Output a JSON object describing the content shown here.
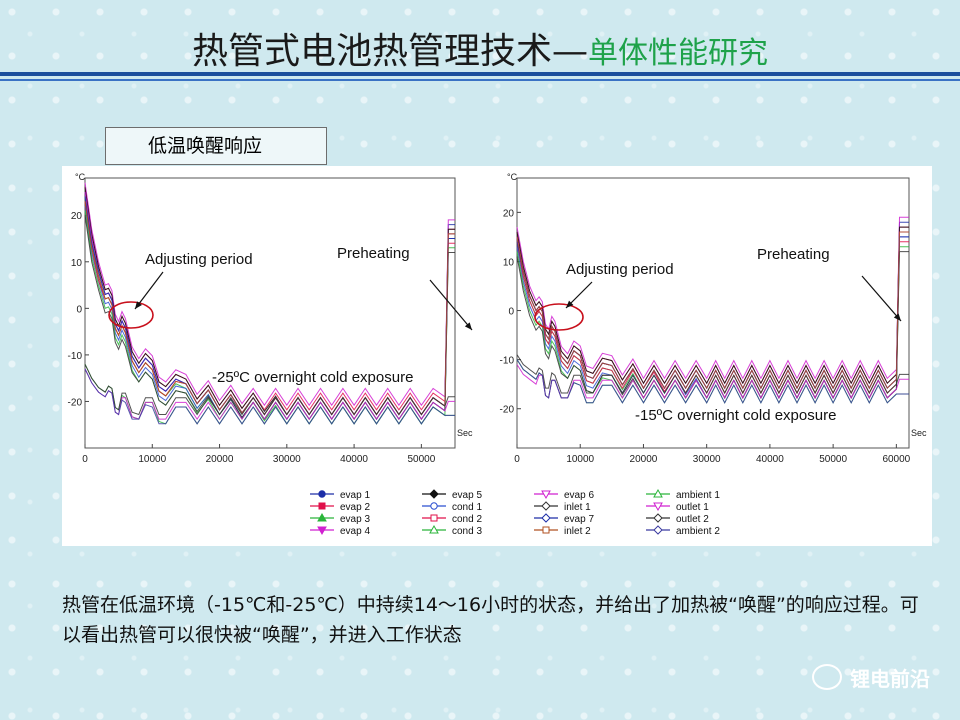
{
  "title": {
    "main": "热管式电池热管理技术",
    "dash": "—",
    "sub": "单体性能研究"
  },
  "section_label": "低温唤醒响应",
  "caption": "热管在低温环境（-15℃和-25℃）中持续14～16小时的状态，并给出了加热被“唤醒”的响应过程。可以看出热管可以很快被“唤醒”，并进入工作状态",
  "watermark": "锂电前沿",
  "colors": {
    "evap": "#1d2ea8",
    "hot": "#e0104a",
    "green": "#2ab53a",
    "magenta": "#d020d0",
    "black": "#111111",
    "purple": "#7a3aa0"
  },
  "chart_data": [
    {
      "type": "line",
      "panel": "left",
      "y_unit": "°C",
      "x_unit": "Sec",
      "xlim": [
        0,
        55000
      ],
      "ylim": [
        -30,
        28
      ],
      "xticks": [
        "0",
        "10000",
        "20000",
        "30000",
        "40000",
        "50000"
      ],
      "yticks": [
        "20",
        "10",
        "0",
        "-10",
        "-20"
      ],
      "annotations": [
        "Adjusting  period",
        "Preheating",
        "-25ºC overnight cold exposure"
      ],
      "x": [
        0,
        1000,
        2000,
        3000,
        4000,
        5000,
        6000,
        8000,
        10000,
        12000,
        15000,
        20000,
        25000,
        30000,
        35000,
        40000,
        45000,
        50000,
        53500,
        54000,
        55000
      ],
      "series": [
        {
          "name": "evap 1",
          "values": [
            25,
            15,
            8,
            3,
            0,
            -3,
            -6,
            -11,
            -14,
            -16,
            -18,
            -20,
            -21,
            -21,
            -21,
            -21,
            -21,
            -21,
            -21,
            18,
            18
          ]
        },
        {
          "name": "evap 2",
          "values": [
            26,
            16,
            9,
            4,
            1,
            -2,
            -5,
            -10,
            -13,
            -15,
            -17,
            -19,
            -20,
            -20,
            -20,
            -20,
            -20,
            -20,
            -20,
            17,
            17
          ]
        },
        {
          "name": "evap 3",
          "values": [
            24,
            14,
            7,
            2,
            -1,
            -4,
            -7,
            -12,
            -15,
            -17,
            -19,
            -21,
            -22,
            -22,
            -22,
            -22,
            -22,
            -22,
            -22,
            16,
            16
          ]
        },
        {
          "name": "evap 4",
          "values": [
            27,
            17,
            10,
            5,
            2,
            -1,
            -4,
            -9,
            -12,
            -14,
            -16,
            -18,
            -19,
            -19,
            -19,
            -19,
            -19,
            -19,
            -19,
            19,
            19
          ]
        },
        {
          "name": "evap 5",
          "values": [
            26,
            16,
            9,
            4,
            1,
            -2,
            -5,
            -10,
            -13,
            -15,
            -17,
            -19,
            -20,
            -21,
            -21,
            -21,
            -21,
            -21,
            -21,
            17,
            17
          ]
        },
        {
          "name": "cond 1",
          "values": [
            22,
            12,
            6,
            1,
            -2,
            -5,
            -8,
            -13,
            -16,
            -18,
            -19,
            -21,
            -22,
            -22,
            -22,
            -22,
            -22,
            -22,
            -22,
            15,
            15
          ]
        },
        {
          "name": "cond 2",
          "values": [
            23,
            13,
            6,
            2,
            -1,
            -4,
            -7,
            -12,
            -15,
            -17,
            -18,
            -20,
            -21,
            -21,
            -21,
            -21,
            -21,
            -21,
            -21,
            14,
            14
          ]
        },
        {
          "name": "cond 3",
          "values": [
            21,
            11,
            5,
            0,
            -3,
            -6,
            -9,
            -14,
            -17,
            -19,
            -20,
            -22,
            -22,
            -23,
            -23,
            -23,
            -23,
            -23,
            -23,
            13,
            13
          ]
        },
        {
          "name": "evap 6",
          "values": [
            25,
            15,
            8,
            3,
            0,
            -3,
            -6,
            -11,
            -14,
            -16,
            -18,
            -20,
            -21,
            -21,
            -21,
            -21,
            -21,
            -21,
            -21,
            16,
            16
          ]
        },
        {
          "name": "inlet 1",
          "values": [
            20,
            10,
            4,
            -1,
            -4,
            -7,
            -10,
            -14,
            -17,
            -19,
            -20,
            -21,
            -22,
            -22,
            -22,
            -22,
            -22,
            -22,
            -22,
            12,
            12
          ]
        },
        {
          "name": "evap 7",
          "values": [
            24,
            14,
            8,
            3,
            0,
            -3,
            -6,
            -11,
            -14,
            -16,
            -18,
            -20,
            -21,
            -21,
            -21,
            -21,
            -21,
            -21,
            -21,
            15,
            15
          ]
        },
        {
          "name": "inlet 2",
          "values": [
            23,
            13,
            7,
            2,
            -1,
            -4,
            -7,
            -12,
            -15,
            -17,
            -18,
            -20,
            -21,
            -21,
            -21,
            -21,
            -21,
            -21,
            -21,
            16,
            16
          ]
        },
        {
          "name": "ambient 1",
          "values": [
            -12,
            -15,
            -17,
            -18,
            -19,
            -20,
            -21,
            -22,
            -22,
            -23,
            -23,
            -23,
            -23,
            -23,
            -23,
            -23,
            -23,
            -23,
            -23,
            -23,
            -23
          ]
        },
        {
          "name": "outlet 1",
          "values": [
            -13,
            -16,
            -18,
            -19,
            -20,
            -21,
            -21,
            -22,
            -22,
            -22,
            -22,
            -22,
            -22,
            -22,
            -22,
            -22,
            -22,
            -22,
            -22,
            -20,
            -20
          ]
        },
        {
          "name": "outlet 2",
          "values": [
            -12,
            -15,
            -17,
            -18,
            -19,
            -20,
            -20,
            -21,
            -21,
            -21,
            -21,
            -21,
            -21,
            -21,
            -21,
            -21,
            -21,
            -21,
            -21,
            -19,
            -19
          ]
        },
        {
          "name": "ambient 2",
          "values": [
            -13,
            -16,
            -18,
            -19,
            -20,
            -21,
            -22,
            -22,
            -23,
            -23,
            -23,
            -23,
            -23,
            -23,
            -23,
            -23,
            -23,
            -23,
            -23,
            -23,
            -23
          ]
        }
      ]
    },
    {
      "type": "line",
      "panel": "right",
      "y_unit": "°C",
      "x_unit": "Sec",
      "xlim": [
        0,
        62000
      ],
      "ylim": [
        -28,
        27
      ],
      "xticks": [
        "0",
        "10000",
        "20000",
        "30000",
        "40000",
        "50000",
        "60000"
      ],
      "yticks": [
        "20",
        "10",
        "0",
        "-10",
        "-20"
      ],
      "annotations": [
        "Adjusting  period",
        "Preheating",
        "-15ºC overnight cold exposure"
      ],
      "x": [
        0,
        1000,
        2000,
        3000,
        4000,
        5000,
        6000,
        8000,
        10000,
        12000,
        15000,
        20000,
        25000,
        30000,
        40000,
        50000,
        60000,
        60500,
        61000,
        62000
      ],
      "series": [
        {
          "name": "evap 1",
          "values": [
            15,
            8,
            3,
            0,
            -2,
            -4,
            -6,
            -9,
            -11,
            -12,
            -13,
            -14,
            -14,
            -14,
            -14,
            -14,
            -14,
            18,
            18,
            18
          ]
        },
        {
          "name": "evap 2",
          "values": [
            16,
            9,
            4,
            1,
            -1,
            -3,
            -5,
            -8,
            -10,
            -11,
            -12,
            -13,
            -13,
            -13,
            -13,
            -13,
            -13,
            17,
            17,
            17
          ]
        },
        {
          "name": "evap 3",
          "values": [
            14,
            7,
            2,
            -1,
            -3,
            -5,
            -7,
            -10,
            -12,
            -13,
            -14,
            -15,
            -15,
            -15,
            -15,
            -15,
            -15,
            16,
            16,
            16
          ]
        },
        {
          "name": "evap 4",
          "values": [
            17,
            10,
            5,
            2,
            0,
            -2,
            -4,
            -7,
            -9,
            -10,
            -11,
            -12,
            -12,
            -12,
            -12,
            -12,
            -12,
            19,
            19,
            19
          ]
        },
        {
          "name": "evap 5",
          "values": [
            16,
            9,
            4,
            1,
            -1,
            -3,
            -5,
            -8,
            -10,
            -11,
            -12,
            -13,
            -13,
            -13,
            -13,
            -13,
            -13,
            17,
            17,
            17
          ]
        },
        {
          "name": "cond 1",
          "values": [
            13,
            6,
            1,
            -2,
            -4,
            -6,
            -8,
            -11,
            -13,
            -14,
            -15,
            -15,
            -15,
            -16,
            -16,
            -16,
            -16,
            15,
            15,
            15
          ]
        },
        {
          "name": "cond 2",
          "values": [
            14,
            7,
            2,
            -1,
            -3,
            -5,
            -7,
            -10,
            -12,
            -13,
            -14,
            -14,
            -15,
            -15,
            -15,
            -15,
            -15,
            14,
            14,
            14
          ]
        },
        {
          "name": "cond 3",
          "values": [
            12,
            5,
            0,
            -3,
            -5,
            -7,
            -9,
            -12,
            -14,
            -15,
            -16,
            -16,
            -16,
            -16,
            -16,
            -16,
            -16,
            13,
            13,
            13
          ]
        },
        {
          "name": "evap 6",
          "values": [
            15,
            8,
            3,
            0,
            -2,
            -4,
            -6,
            -9,
            -11,
            -12,
            -13,
            -14,
            -14,
            -14,
            -14,
            -14,
            -14,
            16,
            16,
            16
          ]
        },
        {
          "name": "inlet 1",
          "values": [
            11,
            4,
            -1,
            -4,
            -6,
            -8,
            -10,
            -12,
            -14,
            -15,
            -15,
            -16,
            -16,
            -16,
            -16,
            -16,
            -16,
            12,
            12,
            12
          ]
        },
        {
          "name": "evap 7",
          "values": [
            14,
            8,
            3,
            0,
            -2,
            -4,
            -6,
            -9,
            -11,
            -12,
            -13,
            -14,
            -14,
            -14,
            -14,
            -14,
            -14,
            15,
            15,
            15
          ]
        },
        {
          "name": "inlet 2",
          "values": [
            15,
            8,
            3,
            0,
            -2,
            -4,
            -6,
            -9,
            -11,
            -12,
            -13,
            -14,
            -14,
            -14,
            -14,
            -14,
            -14,
            16,
            16,
            16
          ]
        },
        {
          "name": "ambient 1",
          "values": [
            -10,
            -12,
            -13,
            -14,
            -15,
            -16,
            -16,
            -16,
            -17,
            -17,
            -17,
            -17,
            -17,
            -17,
            -17,
            -17,
            -17,
            -17,
            -17,
            -17
          ]
        },
        {
          "name": "outlet 1",
          "values": [
            -11,
            -13,
            -14,
            -15,
            -15,
            -16,
            -16,
            -16,
            -16,
            -16,
            -16,
            -16,
            -16,
            -16,
            -16,
            -16,
            -16,
            -14,
            -14,
            -14
          ]
        },
        {
          "name": "outlet 2",
          "values": [
            -9,
            -11,
            -12,
            -13,
            -14,
            -14,
            -15,
            -15,
            -15,
            -15,
            -15,
            -15,
            -15,
            -15,
            -15,
            -15,
            -15,
            -13,
            -13,
            -13
          ]
        },
        {
          "name": "ambient 2",
          "values": [
            -10,
            -12,
            -13,
            -14,
            -15,
            -16,
            -16,
            -16,
            -17,
            -17,
            -17,
            -17,
            -17,
            -17,
            -17,
            -17,
            -17,
            -17,
            -17,
            -17
          ]
        }
      ]
    }
  ],
  "legend": [
    {
      "name": "evap 1",
      "color": "#1d2ea8",
      "marker": "circle"
    },
    {
      "name": "evap 2",
      "color": "#e0104a",
      "marker": "square"
    },
    {
      "name": "evap 3",
      "color": "#2ab53a",
      "marker": "triangle"
    },
    {
      "name": "evap 4",
      "color": "#d020d0",
      "marker": "triangle-down"
    },
    {
      "name": "evap 5",
      "color": "#111111",
      "marker": "diamond"
    },
    {
      "name": "cond 1",
      "color": "#2b4fd0",
      "marker": "circle-open"
    },
    {
      "name": "cond 2",
      "color": "#e0104a",
      "marker": "square-open"
    },
    {
      "name": "cond 3",
      "color": "#2ab53a",
      "marker": "triangle-open"
    },
    {
      "name": "evap 6",
      "color": "#d020d0",
      "marker": "triangle-down-open"
    },
    {
      "name": "inlet 1",
      "color": "#333333",
      "marker": "diamond-open"
    },
    {
      "name": "evap 7",
      "color": "#1d2ea8",
      "marker": "diamond-open"
    },
    {
      "name": "inlet 2",
      "color": "#b05020",
      "marker": "square-open"
    },
    {
      "name": "ambient 1",
      "color": "#2ab53a",
      "marker": "triangle-open"
    },
    {
      "name": "outlet 1",
      "color": "#d020d0",
      "marker": "triangle-down-open"
    },
    {
      "name": "outlet 2",
      "color": "#333333",
      "marker": "diamond-open"
    },
    {
      "name": "ambient 2",
      "color": "#3a3aa0",
      "marker": "diamond-open"
    }
  ]
}
